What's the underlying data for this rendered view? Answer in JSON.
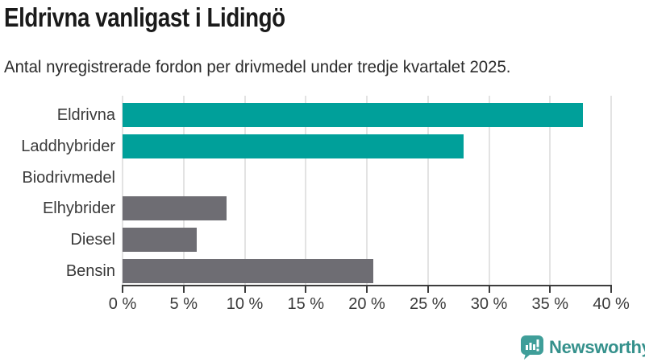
{
  "title": "Eldrivna vanligast i Lidingö",
  "subtitle": "Antal nyregistrerade fordon per drivmedel under tredje kvartalet 2025.",
  "chart_data": {
    "type": "bar",
    "orientation": "horizontal",
    "title": "Eldrivna vanligast i Lidingö",
    "subtitle": "Antal nyregistrerade fordon per drivmedel under tredje kvartalet 2025.",
    "categories": [
      "Eldrivna",
      "Laddhybrider",
      "Biodrivmedel",
      "Elhybrider",
      "Diesel",
      "Bensin"
    ],
    "values": [
      37.7,
      27.9,
      0,
      8.5,
      6.1,
      20.5
    ],
    "unit": "%",
    "xlim": [
      0,
      40
    ],
    "x_tick_step": 5,
    "x_tick_labels": [
      "0 %",
      "5 %",
      "10 %",
      "15 %",
      "20 %",
      "25 %",
      "30 %",
      "35 %",
      "40 %"
    ],
    "grid": true,
    "legend": false,
    "colors": {
      "highlight": "#00a09a",
      "default": "#6e6d73",
      "bar_colors": [
        "#00a09a",
        "#00a09a",
        "#6e6d73",
        "#6e6d73",
        "#6e6d73",
        "#6e6d73"
      ],
      "gridline": "#e3e3e3",
      "axis": "#3d3d3d",
      "text": "#3a3a3a"
    }
  },
  "footer": {
    "brand": "Newsworthy",
    "brand_color": "#35918c",
    "logo_color": "#3f9e99",
    "logo_icon": "bar-chart-speech-bubble"
  }
}
